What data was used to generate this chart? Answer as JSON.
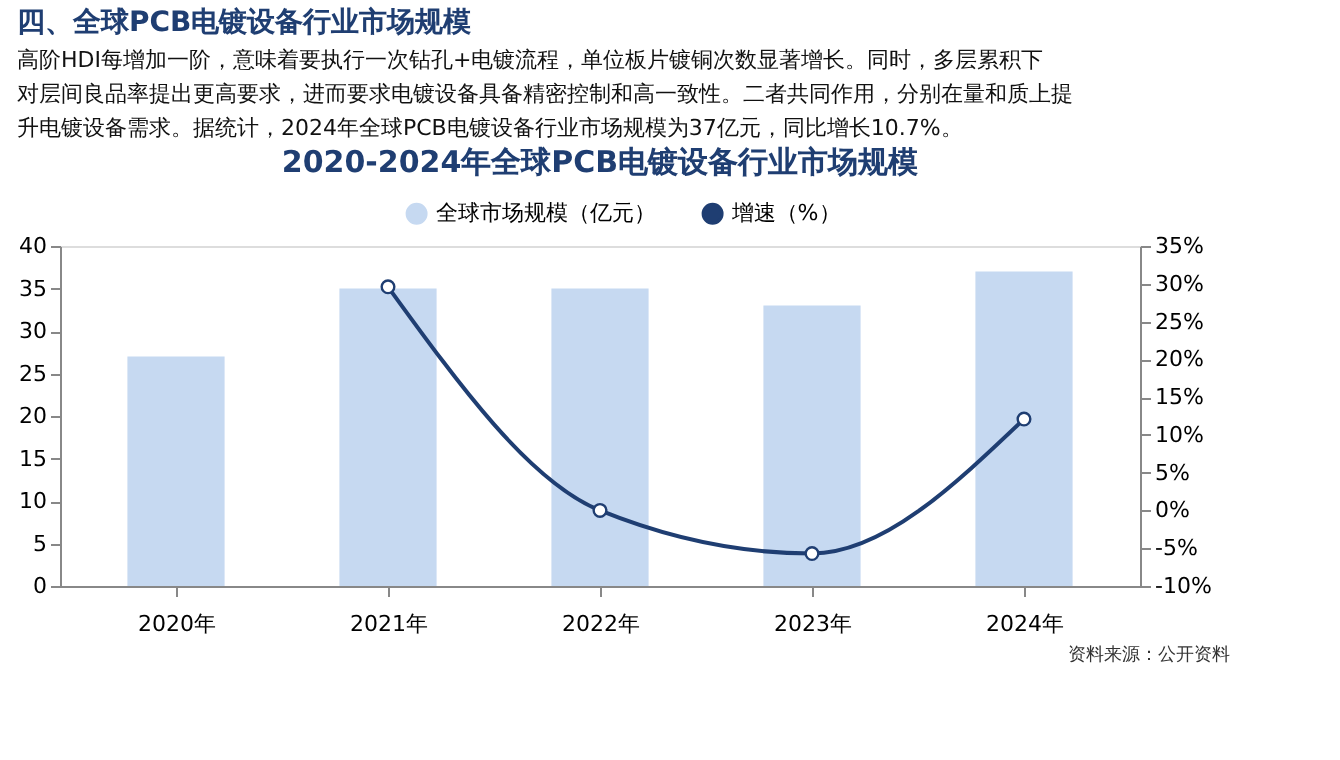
{
  "chart_data": {
    "type": "bar",
    "title": "2020-2024年全球PCB电镀设备行业市场规模",
    "categories": [
      "2020年",
      "2021年",
      "2022年",
      "2023年",
      "2024年"
    ],
    "series": [
      {
        "name": "全球市场规模（亿元）",
        "color": "#c6d9f1",
        "values": [
          27,
          35,
          35,
          33,
          37
        ]
      },
      {
        "name": "增速（%）",
        "type": "line",
        "axis": "y2",
        "color": "#1f3e72",
        "marker": "circle",
        "line_style": "solid",
        "values": [
          null,
          29.6,
          0,
          -5.7,
          12.1
        ]
      }
    ],
    "ylim": [
      0,
      40
    ],
    "yticks": [
      0,
      5,
      10,
      15,
      20,
      25,
      30,
      35,
      40
    ],
    "y2lim": [
      -10,
      35
    ],
    "y2ticks": [
      {
        "value": -10,
        "label": "-10%"
      },
      {
        "value": -5,
        "label": "-5%"
      },
      {
        "value": 0,
        "label": "0%"
      },
      {
        "value": 5,
        "label": "5%"
      },
      {
        "value": 10,
        "label": "10%"
      },
      {
        "value": 15,
        "label": "15%"
      },
      {
        "value": 20,
        "label": "20%"
      },
      {
        "value": 25,
        "label": "25%"
      },
      {
        "value": 30,
        "label": "30%"
      },
      {
        "value": 35,
        "label": "35%"
      }
    ],
    "grid": false,
    "legend": "top",
    "annotations": [
      "四、全球PCB电镀设备行业市场规模",
      "高阶HDI每增加一阶，意味着要执行一次钻孔+电镀流程，单位板片镀铜次数显著增长。同时，多层累积下对层间良品率提出更高要求，进而要求电镀设备具备精密控制和高一致性。二者共同作用，分别在量和质上提升电镀设备需求。据统计，2024年全球PCB电镀设备行业市场规模为37亿元，同比增长10.7%。",
      "资料来源：公开资料"
    ]
  }
}
